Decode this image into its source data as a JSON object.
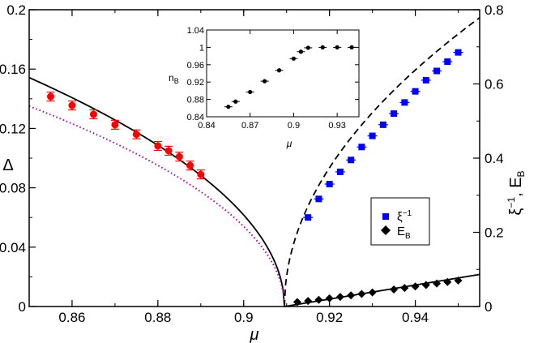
{
  "chart_data": {
    "type": "scatter",
    "main": {
      "xlim": [
        0.85,
        0.955
      ],
      "ylim_left": [
        0,
        0.2
      ],
      "ylim_right": [
        0,
        0.8
      ],
      "xlabel": "μ",
      "ylabel_left": "Δ",
      "ylabel_right": "ξ⁻¹, E_B",
      "x_ticks": [
        0.86,
        0.88,
        0.9,
        0.92,
        0.94
      ],
      "x_tick_labels": [
        "0.86",
        "0.88",
        "0.9",
        "0.92",
        "0.94"
      ],
      "y_left_ticks": [
        0,
        0.04,
        0.08,
        0.12,
        0.16,
        0.2
      ],
      "y_left_tick_labels": [
        "0",
        "0.04",
        "0.08",
        "0.12",
        "0.16",
        "0.2"
      ],
      "y_right_ticks": [
        0,
        0.2,
        0.4,
        0.6,
        0.8
      ],
      "y_right_tick_labels": [
        "0",
        "0.2",
        "0.4",
        "0.6",
        "0.8"
      ],
      "critical_mu": 0.9095,
      "series": [
        {
          "name": "Δ (data)",
          "axis": "left",
          "marker": "circle",
          "color": "#ff0000",
          "x": [
            0.855,
            0.86,
            0.865,
            0.87,
            0.875,
            0.88,
            0.8825,
            0.885,
            0.8875,
            0.89
          ],
          "y": [
            0.1415,
            0.1355,
            0.1295,
            0.1225,
            0.116,
            0.1082,
            0.105,
            0.101,
            0.095,
            0.089
          ],
          "err": [
            0.003,
            0.003,
            0.003,
            0.003,
            0.003,
            0.003,
            0.003,
            0.003,
            0.003,
            0.003
          ]
        },
        {
          "name": "ξ⁻¹",
          "axis": "right",
          "marker": "square",
          "color": "#0000ff",
          "x": [
            0.915,
            0.9175,
            0.92,
            0.9225,
            0.925,
            0.9275,
            0.93,
            0.9325,
            0.935,
            0.9375,
            0.94,
            0.9425,
            0.945,
            0.9475,
            0.95
          ],
          "y": [
            0.24,
            0.29,
            0.33,
            0.363,
            0.395,
            0.43,
            0.46,
            0.49,
            0.52,
            0.55,
            0.58,
            0.61,
            0.635,
            0.66,
            0.685
          ]
        },
        {
          "name": "E_B",
          "axis": "right",
          "marker": "diamond",
          "color": "#000000",
          "x": [
            0.9125,
            0.915,
            0.9175,
            0.92,
            0.9225,
            0.925,
            0.9275,
            0.93,
            0.935,
            0.9375,
            0.94,
            0.9425,
            0.945,
            0.9475,
            0.95
          ],
          "y": [
            0.012,
            0.015,
            0.018,
            0.022,
            0.026,
            0.03,
            0.034,
            0.038,
            0.046,
            0.05,
            0.054,
            0.058,
            0.062,
            0.066,
            0.07
          ]
        }
      ],
      "curves": [
        {
          "name": "Δ fit",
          "axis": "left",
          "style": "solid",
          "color": "#000000",
          "x_from": 0.85,
          "x_to": 0.9095,
          "amp": 0.6325,
          "exponent": 0.5
        },
        {
          "name": "Δ approx",
          "axis": "left",
          "style": "dotted",
          "color": "#b000b0",
          "x_from": 0.85,
          "x_to": 0.9095,
          "amp": 0.5537,
          "exponent": 0.5
        },
        {
          "name": "ξ⁻¹ fit",
          "axis": "right",
          "style": "dashed",
          "color": "#000000",
          "x_from": 0.9095,
          "x_to": 0.955,
          "amp": 3.65,
          "exponent": 0.5
        },
        {
          "name": "E_B fit",
          "axis": "right",
          "style": "solid",
          "color": "#000000",
          "x_from": 0.9095,
          "x_to": 0.955,
          "amp": 1.9,
          "exponent": 1
        }
      ],
      "legend": {
        "position": "middle-right",
        "entries": [
          {
            "label": "ξ⁻¹",
            "marker": "square",
            "color": "#0000ff"
          },
          {
            "label": "E_B",
            "marker": "diamond",
            "color": "#000000"
          }
        ]
      }
    },
    "inset": {
      "type": "scatter",
      "xlim": [
        0.84,
        0.945
      ],
      "ylim": [
        0.84,
        1.04
      ],
      "xlabel": "μ",
      "ylabel": "n_B",
      "x_ticks": [
        0.84,
        0.87,
        0.9,
        0.93
      ],
      "x_tick_labels": [
        "0.84",
        "0.87",
        "0.9",
        "0.93"
      ],
      "y_ticks": [
        0.84,
        0.88,
        0.92,
        0.96,
        1.0,
        1.04
      ],
      "y_tick_labels": [
        "0.84",
        "0.88",
        "0.92",
        "0.96",
        "1",
        "1.04"
      ],
      "series": [
        {
          "name": "n_B",
          "marker": "circle",
          "color": "#000000",
          "x": [
            0.855,
            0.86,
            0.87,
            0.88,
            0.89,
            0.9,
            0.905,
            0.91,
            0.92,
            0.93,
            0.94
          ],
          "y": [
            0.863,
            0.875,
            0.897,
            0.922,
            0.947,
            0.974,
            0.99,
            0.999,
            1.0,
            1.0,
            1.0
          ]
        }
      ]
    }
  }
}
